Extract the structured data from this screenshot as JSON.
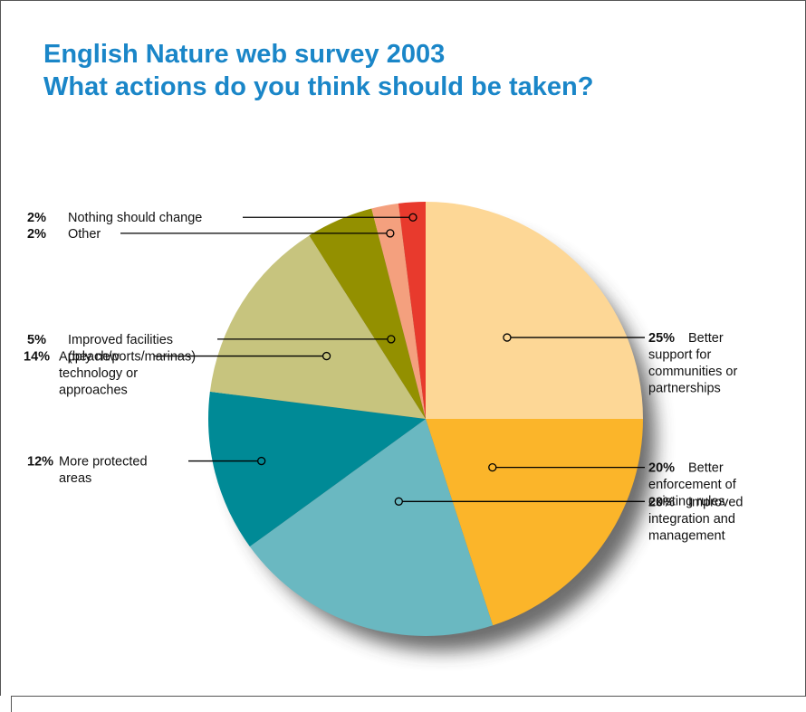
{
  "title_line1": "English Nature web survey 2003",
  "title_line2": "What actions do you think should be taken?",
  "chart_data": {
    "type": "pie",
    "title": "English Nature web survey 2003 What actions do you think should be taken?",
    "slices": [
      {
        "pct": "25%",
        "value": 25,
        "label_lines": [
          "Better",
          "support for",
          "communities or",
          "partnerships"
        ],
        "color": "#fdd796"
      },
      {
        "pct": "20%",
        "value": 20,
        "label_lines": [
          "Better",
          "enforcement of",
          "existing rules"
        ],
        "color": "#fbb52a"
      },
      {
        "pct": "20%",
        "value": 20,
        "label_lines": [
          "Improved",
          "integration and",
          "management"
        ],
        "color": "#6ab8c1"
      },
      {
        "pct": "12%",
        "value": 12,
        "label_lines": [
          "More protected",
          "areas"
        ],
        "color": "#008a96"
      },
      {
        "pct": "14%",
        "value": 14,
        "label_lines": [
          "Apply new",
          "technology or",
          "approaches"
        ],
        "color": "#c7c47e"
      },
      {
        "pct": "5%",
        "value": 5,
        "label_lines": [
          "Improved facilities",
          "(beach/ports/marinas)"
        ],
        "color": "#939000"
      },
      {
        "pct": "2%",
        "value": 2,
        "label_lines": [
          "Other"
        ],
        "color": "#f4a07e"
      },
      {
        "pct": "2%",
        "value": 2,
        "label_lines": [
          "Nothing should change"
        ],
        "color": "#e83a2d"
      }
    ]
  }
}
